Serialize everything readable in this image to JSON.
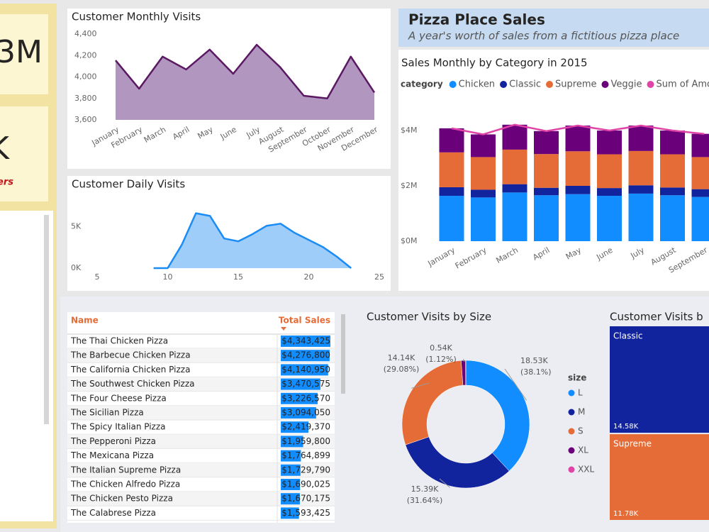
{
  "header": {
    "title": "Pizza Place Sales",
    "subtitle": "A year's worth of sales from a fictitious pizza place"
  },
  "kpis": [
    {
      "value_text": "3M"
    },
    {
      "value_text": "K",
      "caption": "ers"
    }
  ],
  "table": {
    "columns": [
      "Name",
      "Total Sales"
    ],
    "rows": [
      {
        "name": "The Thai Chicken Pizza",
        "total_sales": 4343425,
        "label": "$4,343,425"
      },
      {
        "name": "The Barbecue Chicken Pizza",
        "total_sales": 4276800,
        "label": "$4,276,800"
      },
      {
        "name": "The California Chicken Pizza",
        "total_sales": 4140950,
        "label": "$4,140,950"
      },
      {
        "name": "The Southwest Chicken Pizza",
        "total_sales": 3470575,
        "label": "$3,470,575"
      },
      {
        "name": "The Four Cheese Pizza",
        "total_sales": 3226570,
        "label": "$3,226,570"
      },
      {
        "name": "The Sicilian Pizza",
        "total_sales": 3094050,
        "label": "$3,094,050"
      },
      {
        "name": "The Spicy Italian Pizza",
        "total_sales": 2419370,
        "label": "$2,419,370"
      },
      {
        "name": "The Pepperoni Pizza",
        "total_sales": 1959800,
        "label": "$1,959,800"
      },
      {
        "name": "The Mexicana Pizza",
        "total_sales": 1764899,
        "label": "$1,764,899"
      },
      {
        "name": "The Italian Supreme Pizza",
        "total_sales": 1729790,
        "label": "$1,729,790"
      },
      {
        "name": "The Chicken Alfredo Pizza",
        "total_sales": 1690025,
        "label": "$1,690,025"
      },
      {
        "name": "The Chicken Pesto Pizza",
        "total_sales": 1670175,
        "label": "$1,670,175"
      },
      {
        "name": "The Calabrese Pizza",
        "total_sales": 1593425,
        "label": "$1,593,425"
      }
    ],
    "bar_color": "#118dff"
  },
  "chart_data": [
    {
      "type": "area",
      "title": "Customer Monthly Visits",
      "categories": [
        "January",
        "February",
        "March",
        "April",
        "May",
        "June",
        "July",
        "August",
        "September",
        "October",
        "November",
        "December"
      ],
      "values": [
        4155,
        3890,
        4190,
        4070,
        4255,
        4030,
        4300,
        4090,
        3825,
        3800,
        4190,
        3855
      ],
      "color": "#5b1963",
      "fill": "#b196bf",
      "ylim": [
        3600,
        4400
      ],
      "yticks": [
        {
          "value": 3600,
          "label": "3,600"
        },
        {
          "value": 3800,
          "label": "3,800"
        },
        {
          "value": 4000,
          "label": "4,000"
        },
        {
          "value": 4200,
          "label": "4,200"
        },
        {
          "value": 4400,
          "label": "4,400"
        }
      ]
    },
    {
      "type": "area",
      "title": "Customer Daily Visits",
      "x": [
        9,
        10,
        11,
        12,
        13,
        14,
        15,
        16,
        17,
        18,
        19,
        20,
        21,
        22,
        23
      ],
      "values": [
        0,
        0,
        2800,
        6600,
        6270,
        3560,
        3220,
        4070,
        5080,
        5340,
        4240,
        3390,
        2540,
        1360,
        0
      ],
      "color": "#1b8cf5",
      "fill": "#9fcdf9",
      "xlim": [
        5,
        25
      ],
      "xticks": [
        5,
        10,
        15,
        20,
        25
      ],
      "ylim": [
        0,
        7500
      ],
      "yticks": [
        {
          "value": 0,
          "label": "0K"
        },
        {
          "value": 5000,
          "label": "5K"
        }
      ]
    },
    {
      "type": "bar",
      "stacked": true,
      "title": "Sales Monthly by Category in 2015",
      "legend_title": "category",
      "categories": [
        "January",
        "February",
        "March",
        "April",
        "May",
        "June",
        "July",
        "August",
        "September"
      ],
      "series": [
        {
          "name": "Chicken",
          "color": "#118dff",
          "values": [
            1640000,
            1580000,
            1760000,
            1660000,
            1700000,
            1640000,
            1720000,
            1660000,
            1600000
          ]
        },
        {
          "name": "Classic",
          "color": "#12239e",
          "values": [
            310000,
            280000,
            300000,
            270000,
            300000,
            280000,
            300000,
            280000,
            280000
          ]
        },
        {
          "name": "Supreme",
          "color": "#e66c37",
          "values": [
            1260000,
            1180000,
            1250000,
            1220000,
            1250000,
            1220000,
            1240000,
            1200000,
            1160000
          ]
        },
        {
          "name": "Veggie",
          "color": "#6b007b",
          "values": [
            870000,
            820000,
            900000,
            830000,
            930000,
            860000,
            920000,
            860000,
            840000
          ]
        },
        {
          "name": "Sum of Amour",
          "color": "#e044a7",
          "type": "line",
          "values": [
            4080000,
            3860000,
            4210000,
            3980000,
            4180000,
            4000000,
            4180000,
            4000000,
            3880000
          ]
        }
      ],
      "ylim": [
        0,
        5000000
      ],
      "yticks": [
        {
          "value": 0,
          "label": "$0M"
        },
        {
          "value": 2000000,
          "label": "$2M"
        },
        {
          "value": 4000000,
          "label": "$4M"
        }
      ]
    },
    {
      "type": "pie",
      "donut": true,
      "title": "Customer Visits by Size",
      "legend_title": "size",
      "categories": [
        "L",
        "M",
        "S",
        "XL",
        "XXL"
      ],
      "values": [
        18530,
        15390,
        14140,
        540,
        30
      ],
      "value_labels": [
        "18.53K",
        "15.39K",
        "14.14K",
        "0.54K",
        null
      ],
      "percent_labels": [
        "(38.1%)",
        "(31.64%)",
        "(29.08%)",
        "(1.12%)",
        null
      ],
      "colors": [
        "#118dff",
        "#12239e",
        "#e66c37",
        "#6b007b",
        "#e044a7"
      ]
    },
    {
      "type": "treemap",
      "title": "Customer Visits b",
      "categories": [
        "Classic",
        "Supreme"
      ],
      "values": [
        14580,
        11780
      ],
      "value_labels": [
        "14.58K",
        "11.78K"
      ],
      "colors": [
        "#12239e",
        "#e66c37"
      ]
    }
  ]
}
